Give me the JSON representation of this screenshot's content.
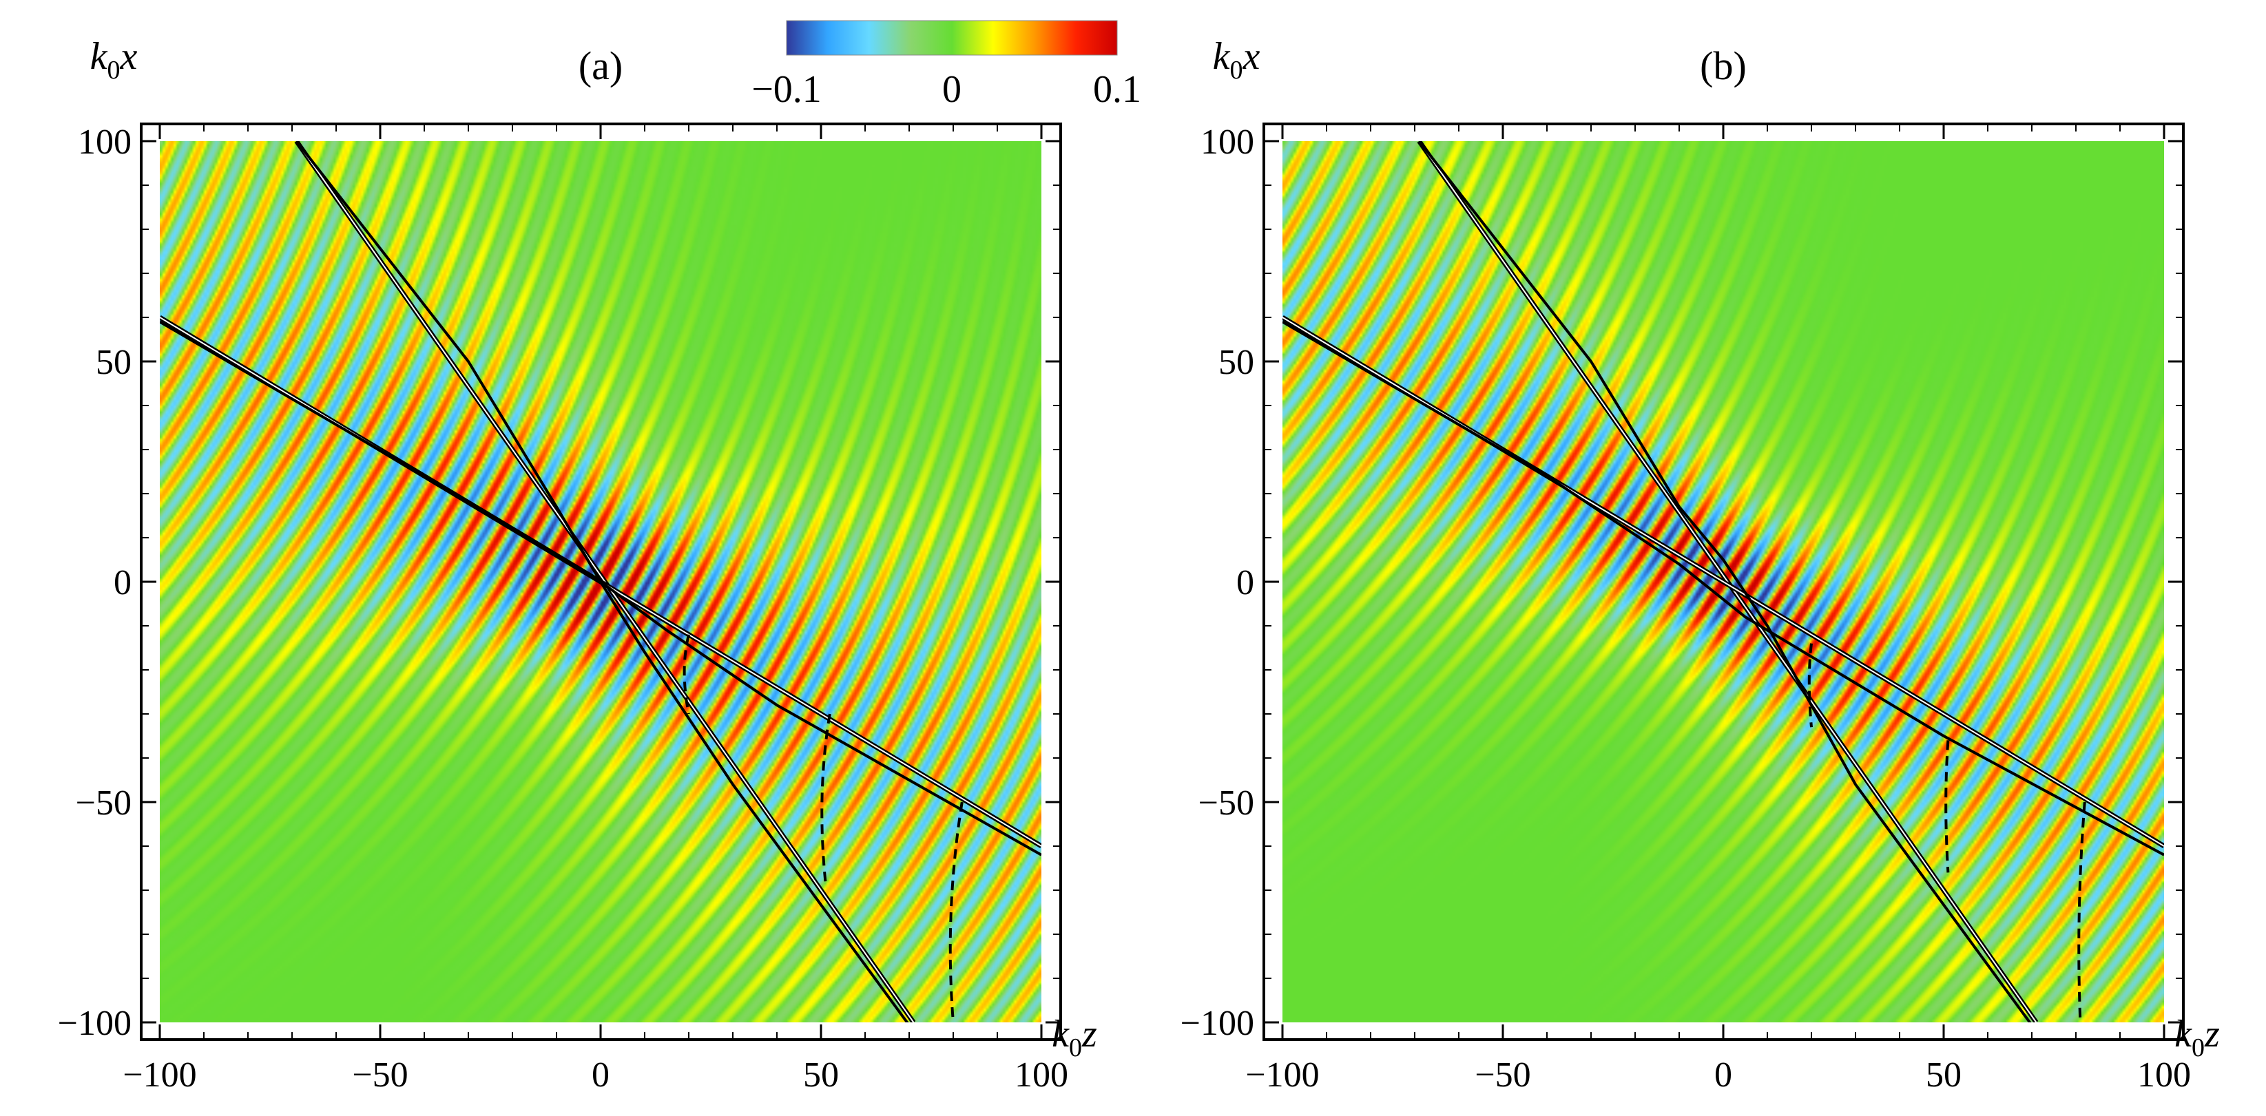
{
  "chart_data": [
    {
      "type": "heatmap",
      "panel_label": "(a)",
      "xlabel_base": "k",
      "xlabel_sub": "0",
      "xlabel_var": "z",
      "ylabel_base": "k",
      "ylabel_sub": "0",
      "ylabel_var": "x",
      "xlim": [
        -100,
        100
      ],
      "ylim": [
        -100,
        100
      ],
      "xticks": [
        -100,
        -50,
        0,
        50,
        100
      ],
      "yticks": [
        -100,
        -50,
        0,
        50,
        100
      ],
      "xtick_labels": [
        "−100",
        "−50",
        "0",
        "50",
        "100"
      ],
      "ytick_labels": [
        "−100",
        "−50",
        "0",
        "50",
        "100"
      ],
      "beam_lines": [
        {
          "x": [
            -69,
            71
          ],
          "y": [
            100,
            -100
          ]
        },
        {
          "x": [
            -100,
            100
          ],
          "y": [
            60,
            -60
          ]
        }
      ],
      "inner_curves": [
        {
          "x": [
            -100,
            -40,
            -15,
            0,
            15,
            40,
            100
          ],
          "y": [
            59,
            24,
            9,
            0,
            -11,
            -28,
            -62
          ]
        },
        {
          "x": [
            -69,
            -30,
            -10,
            0,
            10,
            30,
            71
          ],
          "y": [
            100,
            50,
            17,
            0,
            -16,
            -46,
            -102
          ]
        }
      ],
      "wavefront_arcs": [
        {
          "x": [
            20,
            18,
            20
          ],
          "y": [
            -12,
            -20,
            -30
          ]
        },
        {
          "x": [
            52,
            49,
            51
          ],
          "y": [
            -30,
            -48,
            -68
          ]
        },
        {
          "x": [
            82,
            78,
            80
          ],
          "y": [
            -50,
            -75,
            -100
          ]
        }
      ],
      "field": {
        "k": 1.0,
        "dir_angle_deg": -30,
        "width": 20,
        "amp": 0.1
      }
    },
    {
      "type": "heatmap",
      "panel_label": "(b)",
      "xlabel_base": "k",
      "xlabel_sub": "0",
      "xlabel_var": "z",
      "ylabel_base": "k",
      "ylabel_sub": "0",
      "ylabel_var": "x",
      "xlim": [
        -100,
        100
      ],
      "ylim": [
        -100,
        100
      ],
      "xticks": [
        -100,
        -50,
        0,
        50,
        100
      ],
      "yticks": [
        -100,
        -50,
        0,
        50,
        100
      ],
      "xtick_labels": [
        "−100",
        "−50",
        "0",
        "50",
        "100"
      ],
      "ytick_labels": [
        "−100",
        "−50",
        "0",
        "50",
        "100"
      ],
      "beam_lines": [
        {
          "x": [
            -69,
            71
          ],
          "y": [
            100,
            -100
          ]
        },
        {
          "x": [
            -100,
            100
          ],
          "y": [
            60,
            -60
          ]
        }
      ],
      "inner_curves": [
        {
          "x": [
            -100,
            -40,
            -10,
            5,
            20,
            50,
            100
          ],
          "y": [
            59,
            24,
            4,
            -8,
            -17,
            -35,
            -62
          ]
        },
        {
          "x": [
            -69,
            -30,
            -10,
            0,
            10,
            30,
            71
          ],
          "y": [
            100,
            50,
            17,
            5,
            -10,
            -46,
            -102
          ]
        }
      ],
      "wavefront_arcs": [
        {
          "x": [
            20,
            19,
            20
          ],
          "y": [
            -14,
            -22,
            -33
          ]
        },
        {
          "x": [
            51,
            50,
            51
          ],
          "y": [
            -36,
            -50,
            -66
          ]
        },
        {
          "x": [
            82,
            80,
            81
          ],
          "y": [
            -50,
            -75,
            -100
          ]
        }
      ],
      "field": {
        "k": 1.0,
        "dir_angle_deg": -33,
        "width": 15,
        "amp": 0.1
      }
    }
  ],
  "colorbar": {
    "min": -0.1,
    "max": 0.1,
    "tick_labels": [
      "−0.1",
      "0",
      "0.1"
    ],
    "colors": [
      "#2f3a9c",
      "#33a6ff",
      "#66d9ff",
      "#8ad66e",
      "#66dd33",
      "#ffff00",
      "#ff9900",
      "#ff2200",
      "#cc0000"
    ]
  }
}
